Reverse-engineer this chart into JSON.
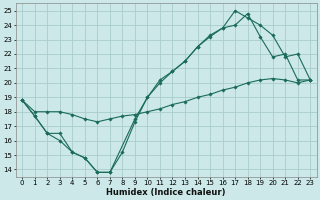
{
  "xlabel": "Humidex (Indice chaleur)",
  "bg_color": "#cce8e8",
  "grid_color": "#aacccc",
  "line_color": "#1a6b5a",
  "xlim": [
    -0.5,
    23.5
  ],
  "ylim": [
    13.5,
    25.5
  ],
  "xticks": [
    0,
    1,
    2,
    3,
    4,
    5,
    6,
    7,
    8,
    9,
    10,
    11,
    12,
    13,
    14,
    15,
    16,
    17,
    18,
    19,
    20,
    21,
    22,
    23
  ],
  "yticks": [
    14,
    15,
    16,
    17,
    18,
    19,
    20,
    21,
    22,
    23,
    24,
    25
  ],
  "line1_x": [
    0,
    1,
    2,
    3,
    4,
    5,
    6,
    7,
    8,
    9,
    10,
    11,
    12,
    13,
    14,
    15,
    16,
    17,
    18,
    19,
    20,
    21,
    22,
    23
  ],
  "line1_y": [
    18.8,
    17.7,
    16.5,
    16.5,
    15.2,
    14.8,
    13.8,
    13.8,
    15.2,
    17.3,
    19.0,
    20.0,
    20.8,
    21.5,
    22.5,
    23.2,
    23.8,
    24.0,
    24.8,
    23.2,
    21.8,
    22.0,
    20.2,
    20.2
  ],
  "line2_x": [
    0,
    1,
    2,
    3,
    4,
    5,
    6,
    7,
    8,
    9,
    10,
    11,
    12,
    13,
    14,
    15,
    16,
    17,
    18,
    19,
    20,
    21,
    22,
    23
  ],
  "line2_y": [
    18.8,
    18.0,
    18.0,
    18.0,
    17.8,
    17.5,
    17.3,
    17.5,
    17.7,
    17.8,
    18.0,
    18.2,
    18.5,
    18.7,
    19.0,
    19.2,
    19.5,
    19.7,
    20.0,
    20.2,
    20.3,
    20.2,
    20.0,
    20.2
  ],
  "line3_x": [
    0,
    1,
    2,
    3,
    4,
    5,
    6,
    7,
    9,
    10,
    11,
    12,
    13,
    14,
    15,
    16,
    17,
    18,
    19,
    20,
    21,
    22,
    23
  ],
  "line3_y": [
    18.8,
    17.7,
    16.5,
    16.0,
    15.2,
    14.8,
    13.8,
    13.8,
    17.5,
    19.0,
    20.2,
    20.8,
    21.5,
    22.5,
    23.3,
    23.8,
    25.0,
    24.5,
    24.0,
    23.3,
    21.8,
    22.0,
    20.2
  ]
}
